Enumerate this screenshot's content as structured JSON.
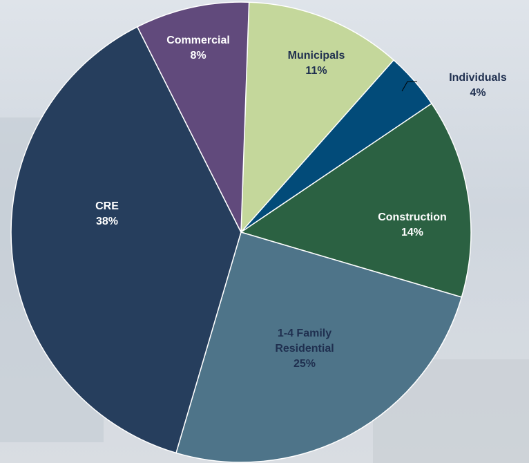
{
  "chart_data": {
    "type": "pie",
    "categories": [
      "Municipals",
      "Individuals",
      "Construction",
      "1-4 Family Residential",
      "CRE",
      "Commercial"
    ],
    "values": [
      11,
      4,
      14,
      25,
      38,
      8
    ],
    "value_labels": [
      "11%",
      "4%",
      "14%",
      "25%",
      "38%",
      "8%"
    ],
    "colors": [
      "#c4d79b",
      "#024b79",
      "#2b6142",
      "#4e7489",
      "#263e5d",
      "#614a7c"
    ],
    "label_colors": [
      "#1f2f4f",
      "#1f2f4f",
      "#ffffff",
      "#1f2f4f",
      "#ffffff",
      "#ffffff"
    ]
  }
}
